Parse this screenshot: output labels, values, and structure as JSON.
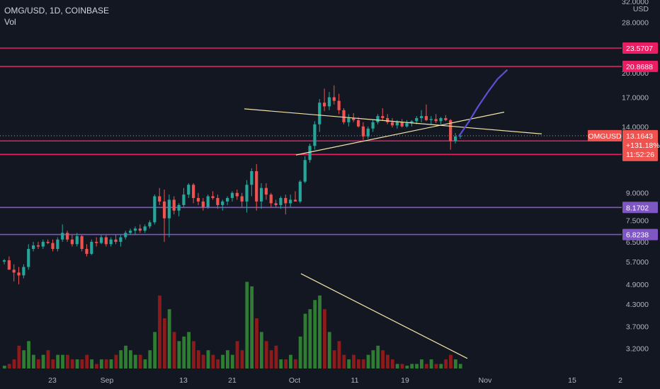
{
  "header": {
    "title": "OMG/USD, 1D, COINBASE",
    "vol_label": "Vol"
  },
  "colors": {
    "background": "#131722",
    "up": "#26a69a",
    "down": "#ef5350",
    "vol_up": "#2e7d32",
    "vol_down": "#8e1b1b",
    "resistance": "#e91e63",
    "support": "#7e57c2",
    "trendline": "#f2e3a8",
    "projection": "#5b4fd6",
    "axis_text": "#b2b5be"
  },
  "chart_data": {
    "type": "candlestick",
    "symbol": "OMG/USD",
    "interval": "1D",
    "exchange": "COINBASE",
    "y_scale": "log",
    "ylim": [
      2.8,
      32
    ],
    "currency_label": "USD",
    "y_ticks": [
      "32.0000",
      "28.0000",
      "20.0000",
      "17.0000",
      "14.0000",
      "9.0000",
      "7.5000",
      "6.5000",
      "5.7000",
      "4.9000",
      "4.3000",
      "3.7000",
      "3.2000"
    ],
    "x_ticks": [
      "23",
      "Sep",
      "13",
      "21",
      "Oct",
      "11",
      "19",
      "Nov",
      "15",
      "2"
    ],
    "last_price": {
      "symbol": "OMGUSD",
      "price": "13.1643",
      "change": "+131.18%",
      "countdown": "11:52:26"
    },
    "levels": [
      {
        "label": "23.5707",
        "value": 23.5707,
        "kind": "resistance"
      },
      {
        "label": "20.8688",
        "value": 20.8688,
        "kind": "resistance"
      },
      {
        "label": "12.7148",
        "value": 12.7148,
        "kind": "resistance"
      },
      {
        "label": "11.6234",
        "value": 11.6234,
        "kind": "resistance"
      },
      {
        "label": "8.1702",
        "value": 8.1702,
        "kind": "support"
      },
      {
        "label": "6.8238",
        "value": 6.8238,
        "kind": "support"
      }
    ],
    "candles": [
      [
        5.7,
        5.8,
        5.6,
        5.75
      ],
      [
        5.75,
        5.9,
        5.5,
        5.4
      ],
      [
        5.4,
        5.6,
        5.0,
        5.3
      ],
      [
        5.3,
        5.5,
        4.9,
        5.2
      ],
      [
        5.2,
        5.6,
        5.1,
        5.5
      ],
      [
        5.5,
        6.4,
        5.4,
        6.2
      ],
      [
        6.2,
        6.5,
        6.1,
        6.35
      ],
      [
        6.35,
        6.5,
        6.2,
        6.3
      ],
      [
        6.3,
        6.6,
        6.2,
        6.5
      ],
      [
        6.5,
        6.6,
        6.4,
        6.45
      ],
      [
        6.45,
        6.6,
        6.1,
        6.2
      ],
      [
        6.2,
        6.7,
        6.1,
        6.6
      ],
      [
        6.6,
        7.3,
        6.5,
        6.9
      ],
      [
        6.9,
        7.0,
        6.5,
        6.6
      ],
      [
        6.6,
        6.8,
        6.3,
        6.4
      ],
      [
        6.4,
        6.9,
        6.3,
        6.75
      ],
      [
        6.75,
        6.8,
        6.1,
        6.2
      ],
      [
        6.2,
        6.4,
        5.9,
        6.0
      ],
      [
        6.0,
        6.6,
        5.95,
        6.5
      ],
      [
        6.5,
        6.7,
        6.3,
        6.45
      ],
      [
        6.45,
        6.8,
        6.4,
        6.7
      ],
      [
        6.7,
        6.8,
        6.3,
        6.4
      ],
      [
        6.4,
        6.7,
        6.3,
        6.6
      ],
      [
        6.6,
        6.8,
        6.4,
        6.5
      ],
      [
        6.5,
        6.8,
        6.3,
        6.7
      ],
      [
        6.7,
        7.0,
        6.6,
        6.9
      ],
      [
        6.9,
        7.1,
        6.8,
        7.0
      ],
      [
        7.0,
        7.2,
        6.8,
        7.1
      ],
      [
        7.1,
        7.3,
        6.9,
        7.0
      ],
      [
        7.0,
        7.3,
        6.9,
        7.2
      ],
      [
        7.2,
        7.5,
        7.1,
        7.4
      ],
      [
        7.4,
        8.9,
        7.3,
        8.8
      ],
      [
        8.8,
        9.3,
        8.3,
        8.5
      ],
      [
        8.5,
        9.2,
        6.5,
        7.6
      ],
      [
        7.6,
        8.9,
        6.7,
        8.6
      ],
      [
        8.6,
        8.8,
        7.8,
        8.0
      ],
      [
        8.0,
        8.4,
        7.7,
        8.3
      ],
      [
        8.3,
        9.3,
        8.2,
        8.9
      ],
      [
        8.9,
        9.6,
        8.7,
        9.5
      ],
      [
        9.5,
        9.6,
        8.4,
        8.7
      ],
      [
        8.7,
        9.0,
        8.3,
        8.5
      ],
      [
        8.5,
        8.7,
        8.0,
        8.2
      ],
      [
        8.2,
        8.9,
        8.1,
        8.8
      ],
      [
        8.8,
        9.1,
        8.6,
        8.7
      ],
      [
        8.7,
        8.9,
        8.1,
        8.3
      ],
      [
        8.3,
        8.6,
        8.0,
        8.5
      ],
      [
        8.5,
        8.8,
        8.3,
        8.7
      ],
      [
        8.7,
        9.1,
        8.5,
        9.0
      ],
      [
        9.0,
        9.2,
        8.6,
        8.8
      ],
      [
        8.8,
        9.0,
        8.2,
        8.5
      ],
      [
        8.5,
        9.8,
        7.9,
        9.5
      ],
      [
        9.5,
        10.6,
        8.8,
        10.4
      ],
      [
        10.4,
        10.9,
        8.0,
        8.5
      ],
      [
        8.5,
        9.6,
        8.1,
        9.3
      ],
      [
        9.3,
        9.6,
        8.6,
        8.9
      ],
      [
        8.9,
        9.0,
        8.2,
        8.4
      ],
      [
        8.4,
        8.6,
        8.2,
        8.3
      ],
      [
        8.3,
        8.8,
        8.1,
        8.7
      ],
      [
        8.7,
        8.9,
        7.8,
        8.4
      ],
      [
        8.4,
        8.9,
        8.2,
        8.6
      ],
      [
        8.6,
        9.1,
        8.5,
        8.5
      ],
      [
        8.5,
        9.8,
        8.4,
        9.7
      ],
      [
        9.7,
        11.5,
        9.6,
        11.2
      ],
      [
        11.2,
        12.5,
        11.0,
        12.3
      ],
      [
        12.3,
        14.5,
        12.0,
        14.2
      ],
      [
        14.2,
        16.8,
        13.5,
        16.4
      ],
      [
        16.4,
        18.0,
        15.5,
        16.0
      ],
      [
        16.0,
        17.6,
        15.6,
        17.0
      ],
      [
        17.0,
        18.4,
        16.2,
        16.6
      ],
      [
        16.6,
        17.4,
        15.2,
        15.6
      ],
      [
        15.6,
        15.8,
        14.2,
        14.4
      ],
      [
        14.4,
        15.2,
        14.0,
        14.8
      ],
      [
        14.8,
        15.3,
        14.4,
        14.6
      ],
      [
        14.6,
        14.9,
        13.9,
        14.0
      ],
      [
        14.0,
        14.4,
        12.8,
        13.1
      ],
      [
        13.1,
        14.0,
        12.9,
        13.8
      ],
      [
        13.8,
        14.6,
        13.5,
        14.4
      ],
      [
        14.4,
        15.2,
        14.2,
        15.0
      ],
      [
        15.0,
        15.8,
        14.6,
        14.8
      ],
      [
        14.8,
        15.2,
        14.2,
        14.4
      ],
      [
        14.4,
        14.8,
        13.9,
        14.1
      ],
      [
        14.1,
        14.6,
        13.8,
        14.4
      ],
      [
        14.4,
        14.7,
        13.9,
        14.0
      ],
      [
        14.0,
        14.6,
        13.9,
        14.3
      ],
      [
        14.3,
        14.6,
        14.0,
        14.5
      ],
      [
        14.5,
        15.0,
        14.2,
        14.8
      ],
      [
        14.8,
        15.6,
        14.4,
        15.0
      ],
      [
        15.0,
        16.2,
        14.5,
        14.6
      ],
      [
        14.6,
        15.0,
        14.2,
        14.7
      ],
      [
        14.7,
        15.2,
        14.3,
        14.5
      ],
      [
        14.5,
        14.9,
        14.2,
        14.8
      ],
      [
        14.8,
        15.1,
        14.5,
        14.6
      ],
      [
        14.6,
        14.7,
        12.0,
        12.7
      ],
      [
        12.7,
        13.4,
        12.5,
        13.1
      ],
      [
        13.1,
        13.3,
        12.9,
        13.16
      ]
    ],
    "volume": [
      3.0,
      3.1,
      3.2,
      3.5,
      3.4,
      3.6,
      3.3,
      3.2,
      3.3,
      3.4,
      3.2,
      3.3,
      3.3,
      3.3,
      3.2,
      3.2,
      3.2,
      3.3,
      3.2,
      3.1,
      3.2,
      3.2,
      3.2,
      3.3,
      3.4,
      3.5,
      3.4,
      3.3,
      3.3,
      3.2,
      3.4,
      3.8,
      4.6,
      4.1,
      4.3,
      3.8,
      3.6,
      3.7,
      3.8,
      3.6,
      3.4,
      3.3,
      3.4,
      3.3,
      3.2,
      3.3,
      3.4,
      3.3,
      3.6,
      3.4,
      4.9,
      4.8,
      4.1,
      3.8,
      3.6,
      3.4,
      3.5,
      3.2,
      3.2,
      3.3,
      3.2,
      3.7,
      4.2,
      4.3,
      4.5,
      4.6,
      4.3,
      3.8,
      3.4,
      3.6,
      3.3,
      3.2,
      3.3,
      3.2,
      3.2,
      3.3,
      3.4,
      3.5,
      3.4,
      3.3,
      3.2,
      3.1,
      3.1,
      3.0,
      3.1,
      3.1,
      3.2,
      3.1,
      3.2,
      3.1,
      3.1,
      3.2,
      3.3,
      3.2,
      3.1
    ],
    "volume_scale_max": 5.0,
    "trendlines": [
      {
        "name": "upper",
        "points": [
          [
            0,
            18.0
          ],
          [
            90,
            14.1
          ]
        ]
      },
      {
        "name": "lower",
        "points": [
          [
            68,
            12.2
          ],
          [
            94,
            14.5
          ]
        ]
      },
      {
        "name": "volume",
        "points": [
          [
            70,
            4.6
          ],
          [
            94,
            3.3
          ]
        ]
      }
    ],
    "projection": [
      [
        94,
        13.1
      ],
      [
        96,
        14.4
      ],
      [
        98,
        16.0
      ],
      [
        100,
        17.6
      ],
      [
        102,
        19.2
      ],
      [
        104,
        20.4
      ]
    ]
  }
}
